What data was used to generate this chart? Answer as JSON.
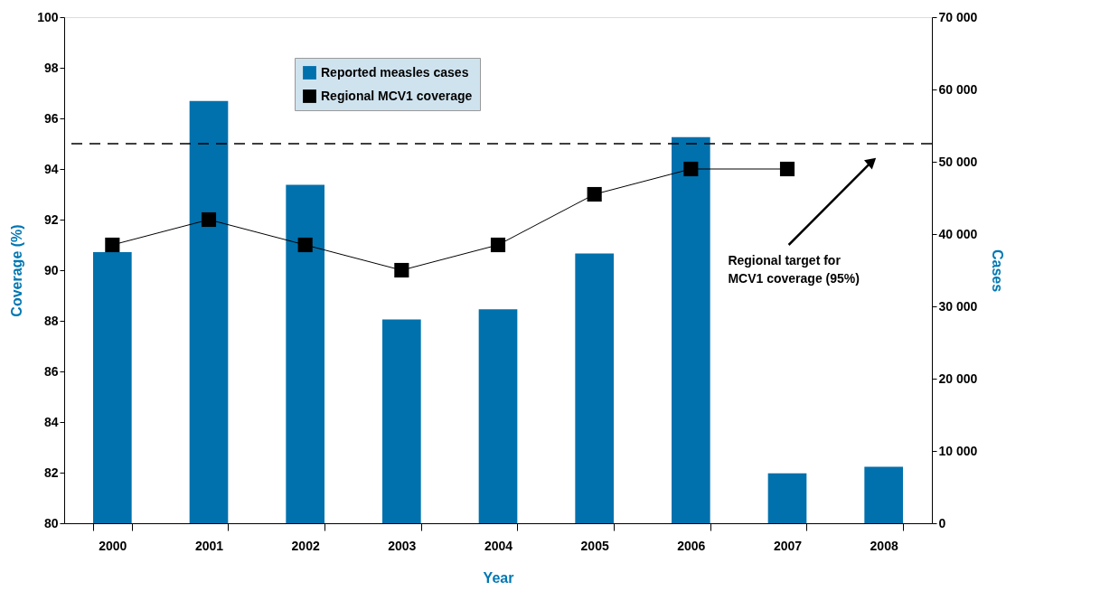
{
  "chart_data": {
    "type": "bar",
    "xlabel": "Year",
    "ylabel": "Coverage (%)",
    "y2label": "Cases",
    "categories": [
      "2000",
      "2001",
      "2002",
      "2003",
      "2004",
      "2005",
      "2006",
      "2007",
      "2008"
    ],
    "series": [
      {
        "name": "Reported measles cases",
        "axis": "y2",
        "color": "#0071ad",
        "values": [
          37500,
          58400,
          46800,
          28200,
          29600,
          37300,
          53400,
          6900,
          7800
        ]
      },
      {
        "name": "Regional MCV1 coverage",
        "type": "line",
        "color": "#000000",
        "marker": "square",
        "values": [
          91,
          92,
          91,
          90,
          91,
          93,
          94,
          94,
          null
        ]
      }
    ],
    "ylim": [
      80,
      100
    ],
    "yticks": [
      80,
      82,
      84,
      86,
      88,
      90,
      92,
      94,
      96,
      98,
      100
    ],
    "y2lim": [
      0,
      70000
    ],
    "y2ticks": [
      {
        "value": 0,
        "label": "0"
      },
      {
        "value": 10000,
        "label": "10 000"
      },
      {
        "value": 20000,
        "label": "20 000"
      },
      {
        "value": 30000,
        "label": "30 000"
      },
      {
        "value": 40000,
        "label": "40 000"
      },
      {
        "value": 50000,
        "label": "50 000"
      },
      {
        "value": 60000,
        "label": "60 000"
      },
      {
        "value": 70000,
        "label": "70 000"
      }
    ],
    "ref_lines": [
      {
        "axis": "y",
        "value": 95,
        "color": "#000000",
        "line_style": "dashed"
      }
    ],
    "annotations": [
      "Regional target for MCV1 coverage (95%)"
    ],
    "legend": "top",
    "grid": false
  }
}
